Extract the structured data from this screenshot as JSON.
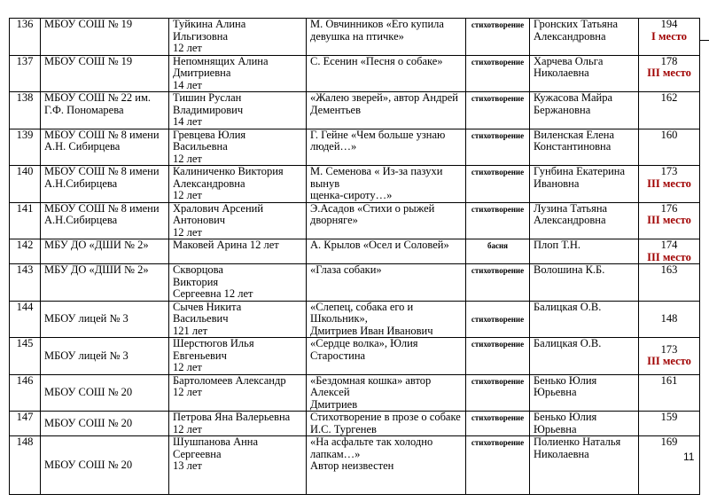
{
  "rows": [
    {
      "num": "136",
      "school": "МБОУ СОШ № 19",
      "name": [
        "Туйкина Алина Ильгизовна",
        "12 лет"
      ],
      "work": [
        "М. Овчинников «Его купила",
        "девушка на птичке»"
      ],
      "genre": "стихотворение",
      "teacher": [
        "Гронских Татьяна",
        "Александровна"
      ],
      "score": "194",
      "place": "I место"
    },
    {
      "num": "137",
      "school": "МБОУ СОШ № 19",
      "name": [
        "Непомнящих Алина",
        "Дмитриевна",
        "14 лет"
      ],
      "work": [
        "С. Есенин «Песня о собаке»"
      ],
      "genre": "стихотворение",
      "teacher": [
        "Харчева Ольга",
        "Николаевна"
      ],
      "score": "178",
      "place": "III место"
    },
    {
      "num": "138",
      "school": "МБОУ СОШ № 22 им. Г.Ф. Пономарева",
      "name": [
        "Тишин Руслан",
        "Владимирович",
        "14 лет"
      ],
      "work": [
        "«Жалею зверей», автор Андрей",
        "Дементьев"
      ],
      "genre": "стихотворение",
      "teacher": [
        "Кужасова Майра",
        "Бержановна"
      ],
      "score": "162",
      "place": ""
    },
    {
      "num": "139",
      "school": "МБОУ СОШ № 8 имени А.Н. Сибирцева",
      "name": [
        "Гревцева Юлия Васильевна",
        "12 лет"
      ],
      "work": [
        "Г. Гейне «Чем больше узнаю",
        "людей…»"
      ],
      "genre": "стихотворение",
      "teacher": [
        "Виленская Елена",
        "Константиновна"
      ],
      "score": "160",
      "place": ""
    },
    {
      "num": "140",
      "school": "МБОУ СОШ № 8 имени А.Н.Сибирцева",
      "name": [
        "Калиниченко Виктория",
        "Александровна",
        "12 лет"
      ],
      "work": [
        "М. Семенова « Из-за пазухи вынув",
        "щенка-сироту…»"
      ],
      "genre": "стихотворение",
      "teacher": [
        "Гунбина Екатерина",
        "Ивановна"
      ],
      "score": "173",
      "place": "III место"
    },
    {
      "num": "141",
      "school": "МБОУ СОШ № 8 имени А.Н.Сибирцева",
      "name": [
        "Хралович Арсений",
        "Антонович",
        "12 лет"
      ],
      "work": [
        "Э.Асадов «Стихи о рыжей",
        "дворняге»"
      ],
      "genre": "стихотворение",
      "teacher": [
        "Лузина Татьяна",
        "Александровна"
      ],
      "score": "176",
      "place": "III место"
    },
    {
      "num": "142",
      "school": "МБУ ДО «ДШИ № 2»",
      "name": [
        "Маковей Арина 12 лет"
      ],
      "work": [
        "А. Крылов «Осел и Соловей»"
      ],
      "genre": "басня",
      "teacher": [
        "Плоп Т.Н."
      ],
      "score": "174",
      "place": "III место"
    },
    {
      "num": "143",
      "school": "МБУ ДО «ДШИ № 2»",
      "name": [
        "Скворцова",
        "Виктория",
        "Сергеевна 12 лет"
      ],
      "work": [
        "«Глаза собаки»"
      ],
      "genre": "стихотворение",
      "teacher": [
        "Волошина К.Б."
      ],
      "score": "163",
      "place": ""
    },
    {
      "num": "144",
      "school": "МБОУ лицей № 3",
      "name": [
        "Сычев Никита",
        "Васильевич",
        "121 лет"
      ],
      "work": [
        "«Слепец, собака его и Школьник»,",
        "Дмитриев Иван Иванович"
      ],
      "genre": "стихотворение",
      "teacher": [
        "Балицкая О.В."
      ],
      "score": "148",
      "place": ""
    },
    {
      "num": "145",
      "school": "МБОУ лицей № 3",
      "name": [
        "Шерстюгов Илья",
        "Евгеньевич",
        "12 лет"
      ],
      "work": [
        "«Сердце волка», Юлия Старостина"
      ],
      "genre": "стихотворение",
      "teacher": [
        "Балицкая О.В."
      ],
      "score": "173",
      "place": "III место"
    },
    {
      "num": "146",
      "school": "МБОУ СОШ № 20",
      "name": [
        "Бартоломеев Александр",
        "12 лет"
      ],
      "work": [
        "«Бездомная кошка» автор Алексей",
        "Дмитриев"
      ],
      "genre": "стихотворение",
      "teacher": [
        "Бенько Юлия",
        "Юрьевна"
      ],
      "score": "161",
      "place": ""
    },
    {
      "num": "147",
      "school": "МБОУ СОШ № 20",
      "name": [
        "Петрова Яна Валерьевна",
        "12 лет"
      ],
      "work": [
        "Стихотворение в прозе о собаке",
        "И.С. Тургенев"
      ],
      "genre": "стихотворение",
      "teacher": [
        "Бенько Юлия",
        "Юрьевна"
      ],
      "score": "159",
      "place": ""
    },
    {
      "num": "148",
      "school": "МБОУ СОШ № 20",
      "name": [
        "Шушпанова Анна Сергеевна",
        "13 лет"
      ],
      "work": [
        "«На асфальте так холодно",
        "лапкам…»",
        "Автор неизвестен"
      ],
      "genre": "стихотворение",
      "teacher": [
        "Полиенко Наталья",
        "Николаевна"
      ],
      "score": "169",
      "place": ""
    }
  ],
  "page_number": "11",
  "colors": {
    "place": "#a00000"
  }
}
